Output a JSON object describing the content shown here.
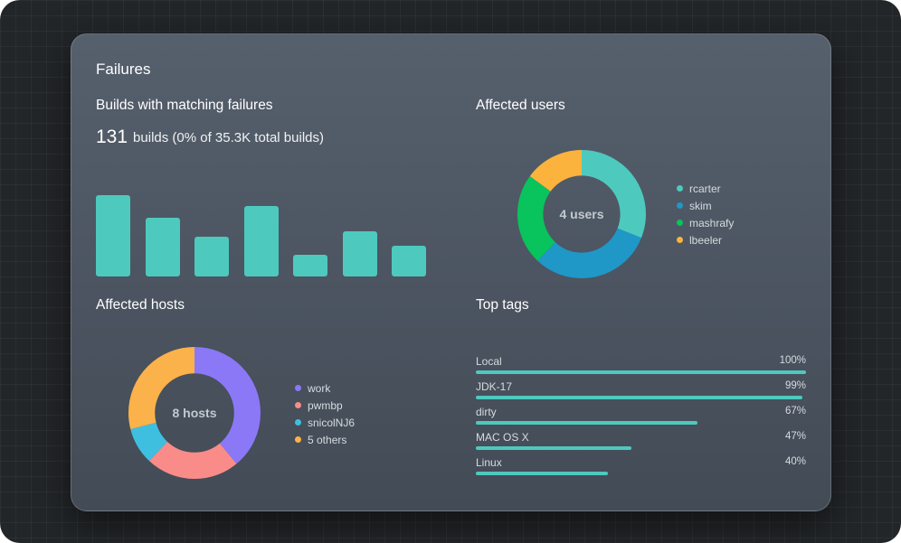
{
  "card": {
    "title": "Failures"
  },
  "builds": {
    "heading": "Builds with matching failures",
    "count": "131",
    "summary": "builds (0% of 35.3K total builds)"
  },
  "chart_data": [
    {
      "type": "bar",
      "title": "",
      "categories": [
        "",
        "",
        "",
        "",
        "",
        "",
        ""
      ],
      "values": [
        90,
        65,
        44,
        78,
        24,
        50,
        34
      ],
      "ylim": [
        0,
        90
      ],
      "grid": false,
      "color": "#4ec9be"
    },
    {
      "type": "pie",
      "title": "Affected users",
      "center_label": "4 users",
      "labels": [
        "rcarter",
        "skim",
        "mashrafy",
        "lbeeler"
      ],
      "values": [
        31,
        31,
        23,
        15
      ],
      "colors": [
        "#4ec9be",
        "#1f97c7",
        "#09c35c",
        "#fbb33e"
      ],
      "legend": "right"
    },
    {
      "type": "pie",
      "title": "Affected hosts",
      "center_label": "8 hosts",
      "labels": [
        "work",
        "pwmbp",
        "snicolNJ6",
        "5 others"
      ],
      "values": [
        39,
        23,
        9,
        29
      ],
      "colors": [
        "#8b78f6",
        "#f98c89",
        "#3fbfe0",
        "#fbb24a"
      ],
      "legend": "right"
    },
    {
      "type": "bar",
      "title": "Top tags",
      "orientation": "horizontal",
      "categories": [
        "Local",
        "JDK-17",
        "dirty",
        "MAC OS X",
        "Linux"
      ],
      "values": [
        100,
        99,
        67,
        47,
        40
      ],
      "value_labels": [
        "100%",
        "99%",
        "67%",
        "47%",
        "40%"
      ],
      "xlim": [
        0,
        100
      ],
      "color": "#4ec9be"
    }
  ],
  "users": {
    "heading": "Affected users"
  },
  "hosts": {
    "heading": "Affected hosts"
  },
  "tags": {
    "heading": "Top tags"
  },
  "colors": {
    "accent": "#4ec9be",
    "card_bg": "#4f5864",
    "page_bg": "#232629"
  }
}
